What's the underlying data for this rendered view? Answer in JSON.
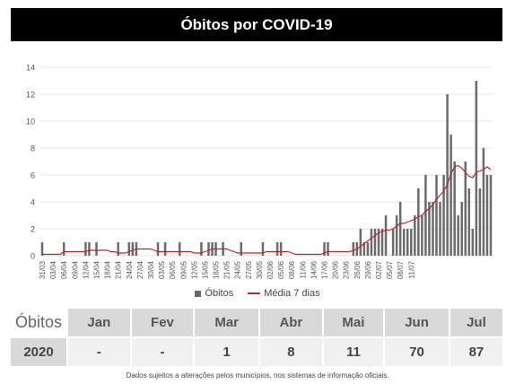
{
  "title": "Óbitos por COVID-19",
  "legend": {
    "bars": "Óbitos",
    "line": "Média 7 dias"
  },
  "colors": {
    "bar": "#6b6b6b",
    "line": "#c0242b",
    "grid": "#e3e3e3"
  },
  "chart_data": {
    "type": "bar",
    "title": "Óbitos por COVID-19",
    "ylim": [
      0,
      14
    ],
    "yticks": [
      0,
      2,
      4,
      6,
      8,
      10,
      12,
      14
    ],
    "grid": true,
    "legend_position": "bottom",
    "x_tick_labels": [
      "31/03",
      "03/04",
      "06/04",
      "09/04",
      "12/04",
      "15/04",
      "18/04",
      "21/04",
      "24/04",
      "27/04",
      "30/04",
      "03/05",
      "06/05",
      "09/05",
      "12/05",
      "15/05",
      "18/05",
      "21/05",
      "24/05",
      "27/05",
      "30/05",
      "02/06",
      "05/06",
      "08/06",
      "11/06",
      "14/06",
      "17/06",
      "20/06",
      "23/06",
      "26/06",
      "29/06",
      "02/07",
      "05/07",
      "08/07",
      "11/07"
    ],
    "start_date": "2020-03-31",
    "series": [
      {
        "name": "Óbitos",
        "type": "bar",
        "values": [
          1,
          0,
          0,
          0,
          0,
          0,
          1,
          0,
          0,
          0,
          0,
          0,
          1,
          1,
          0,
          1,
          0,
          0,
          0,
          0,
          0,
          1,
          0,
          0,
          1,
          1,
          1,
          0,
          0,
          0,
          0,
          0,
          1,
          0,
          1,
          0,
          0,
          0,
          1,
          0,
          0,
          0,
          0,
          0,
          1,
          0,
          1,
          1,
          1,
          0,
          1,
          0,
          0,
          0,
          0,
          1,
          0,
          0,
          0,
          0,
          0,
          1,
          0,
          0,
          0,
          1,
          1,
          0,
          0,
          0,
          0,
          0,
          0,
          0,
          0,
          0,
          0,
          0,
          1,
          1,
          0,
          0,
          0,
          0,
          0,
          0,
          1,
          1,
          2,
          1,
          1,
          2,
          2,
          2,
          2,
          3,
          0,
          2,
          3,
          4,
          2,
          2,
          2,
          3,
          5,
          3,
          6,
          4,
          4,
          6,
          4,
          6,
          12,
          9,
          7,
          3,
          4,
          7,
          5,
          2,
          13,
          5,
          8,
          6,
          6
        ]
      },
      {
        "name": "Média 7 dias",
        "type": "line",
        "values": [
          0.1,
          0.1,
          0.1,
          0.1,
          0.1,
          0.1,
          0.3,
          0.3,
          0.3,
          0.3,
          0.3,
          0.3,
          0.3,
          0.4,
          0.4,
          0.4,
          0.4,
          0.4,
          0.4,
          0.3,
          0.3,
          0.2,
          0.2,
          0.2,
          0.3,
          0.4,
          0.5,
          0.5,
          0.5,
          0.5,
          0.5,
          0.4,
          0.3,
          0.3,
          0.3,
          0.3,
          0.3,
          0.3,
          0.3,
          0.3,
          0.3,
          0.3,
          0.2,
          0.2,
          0.2,
          0.3,
          0.4,
          0.5,
          0.5,
          0.5,
          0.5,
          0.5,
          0.4,
          0.3,
          0.2,
          0.2,
          0.2,
          0.2,
          0.2,
          0.2,
          0.2,
          0.2,
          0.3,
          0.3,
          0.3,
          0.3,
          0.3,
          0.3,
          0.3,
          0.2,
          0.1,
          0.1,
          0.1,
          0.1,
          0.1,
          0.1,
          0.1,
          0.1,
          0.2,
          0.3,
          0.3,
          0.3,
          0.3,
          0.3,
          0.3,
          0.3,
          0.4,
          0.5,
          0.7,
          0.9,
          1.1,
          1.3,
          1.5,
          1.7,
          1.8,
          1.9,
          1.9,
          2.0,
          2.2,
          2.4,
          2.4,
          2.5,
          2.6,
          2.7,
          2.9,
          3.0,
          3.3,
          3.5,
          3.8,
          4.2,
          4.5,
          4.8,
          5.3,
          6.1,
          6.6,
          6.7,
          6.5,
          6.2,
          5.9,
          5.8,
          6.2,
          6.3,
          6.4,
          6.6,
          6.4
        ]
      }
    ]
  },
  "table": {
    "header_label": "Óbitos",
    "months": [
      "Jan",
      "Fev",
      "Mar",
      "Abr",
      "Mai",
      "Jun",
      "Jul"
    ],
    "year": "2020",
    "values": [
      "-",
      "-",
      "1",
      "8",
      "11",
      "70",
      "87"
    ]
  },
  "footnote": "Dados sujeitos a alterações pelos municípios, nos sistemas de informação oficiais."
}
